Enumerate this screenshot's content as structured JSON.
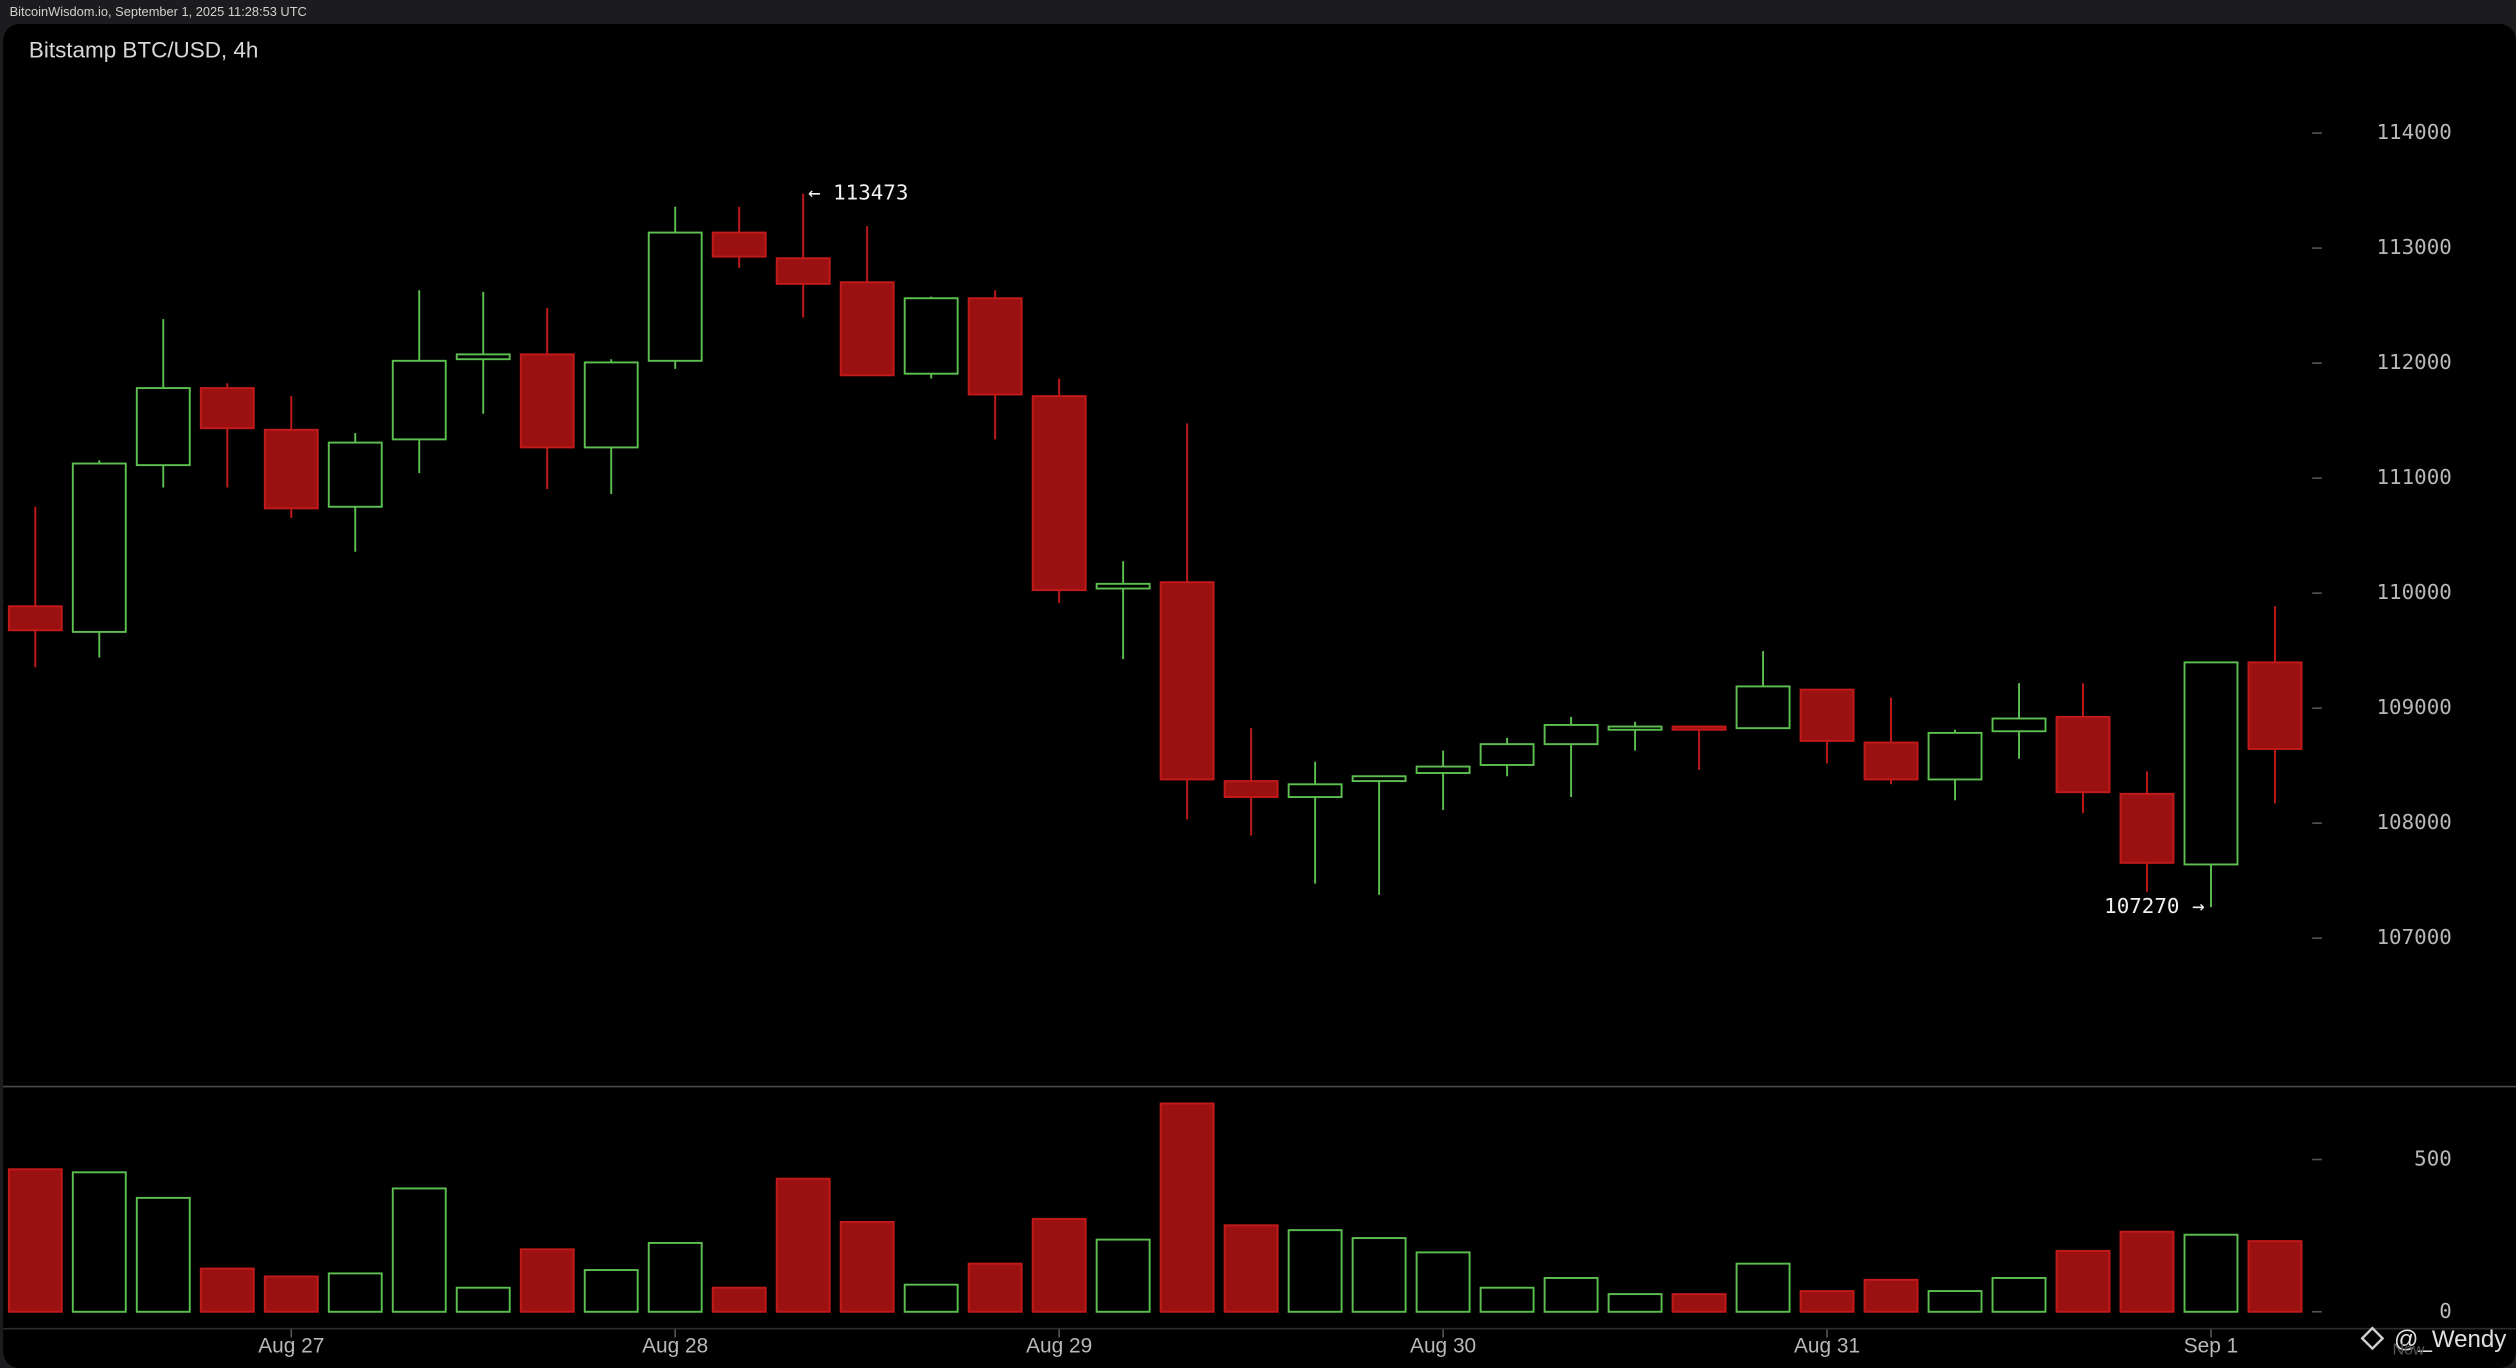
{
  "header": {
    "source": "BitcoinWisdom.io, September 1, 2025 11:28:53 UTC"
  },
  "watermark": "@_Wendy",
  "now_label": "Now",
  "chart_data": [
    {
      "type": "candlestick",
      "title": "Bitstamp BTC/USD, 4h",
      "open": [
        109886,
        109663,
        111113,
        111783,
        111420,
        110751,
        111337,
        112034,
        112076,
        111267,
        112020,
        113135,
        112912,
        112703,
        111908,
        112564,
        111713,
        110040,
        110095,
        108366,
        108227,
        108366,
        108436,
        108506,
        108687,
        108812,
        108840,
        108826,
        109161,
        108701,
        108380,
        108799,
        108924,
        108255,
        107641,
        109398
      ],
      "high": [
        110751,
        111155,
        112382,
        111825,
        111713,
        111392,
        112633,
        112619,
        112480,
        112034,
        113359,
        113359,
        113473,
        113191,
        112578,
        112633,
        111866,
        110277,
        111476,
        108826,
        108534,
        108366,
        108631,
        108743,
        108924,
        108882,
        108826,
        109496,
        109161,
        109091,
        108813,
        109217,
        109217,
        108450,
        109398,
        109886
      ],
      "low": [
        109356,
        109440,
        110918,
        110918,
        110653,
        110360,
        111044,
        111560,
        110904,
        110862,
        111950,
        112829,
        112396,
        111894,
        111866,
        111337,
        109914,
        109426,
        108032,
        107892,
        107474,
        107376,
        108115,
        108408,
        108227,
        108631,
        108464,
        108826,
        108520,
        108338,
        108199,
        108561,
        108087,
        107404,
        107270,
        108171
      ],
      "close": [
        109677,
        111127,
        111783,
        111434,
        110737,
        111309,
        112020,
        112076,
        111267,
        112006,
        113135,
        112926,
        112689,
        111894,
        112564,
        111727,
        110026,
        110081,
        108380,
        108227,
        108338,
        108408,
        108492,
        108687,
        108854,
        108840,
        108812,
        109189,
        108715,
        108380,
        108785,
        108910,
        108269,
        107655,
        109398,
        108645
      ],
      "up_color": "#5cbf4f",
      "down_color": "#9b1111",
      "ylim": [
        105717,
        114948
      ],
      "yticks": [
        107000,
        108000,
        109000,
        110000,
        111000,
        112000,
        113000,
        114000
      ],
      "annotations": [
        {
          "value": 113473,
          "label": "← 113473"
        },
        {
          "value": 107270,
          "label": "107270 →"
        }
      ]
    },
    {
      "type": "bar",
      "categories": [
        null,
        null,
        null,
        null,
        "Aug 27",
        null,
        null,
        null,
        null,
        null,
        "Aug 28",
        null,
        null,
        null,
        null,
        null,
        "Aug 29",
        null,
        null,
        null,
        null,
        null,
        "Aug 30",
        null,
        null,
        null,
        null,
        null,
        "Aug 31",
        null,
        null,
        null,
        null,
        null,
        "Sep 1",
        null
      ],
      "values": [
        468,
        458,
        374,
        142,
        116,
        126,
        405,
        79,
        205,
        137,
        226,
        79,
        437,
        295,
        89,
        158,
        305,
        237,
        684,
        284,
        268,
        242,
        195,
        79,
        111,
        58,
        58,
        158,
        68,
        105,
        68,
        111,
        200,
        263,
        253,
        232
      ],
      "up_color": "#5cbf4f",
      "down_color": "#9b1111",
      "ylim": [
        -53,
        737
      ],
      "yticks": [
        0,
        500
      ]
    }
  ]
}
